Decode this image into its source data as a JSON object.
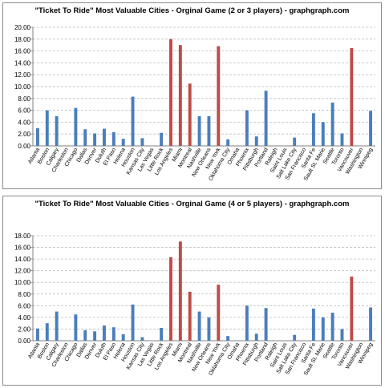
{
  "chart_data": [
    {
      "type": "bar",
      "title": "\"Ticket To Ride\" Most Valuable Cities - Orginal Game (2 or 3 players) - graphgraph.com",
      "xlabel": "",
      "ylabel": "",
      "ylim": [
        0,
        20
      ],
      "yticks": [
        "0.00",
        "2.00",
        "4.00",
        "6.00",
        "8.00",
        "10.00",
        "12.00",
        "14.00",
        "16.00",
        "18.00",
        "20.00"
      ],
      "grid": true,
      "colors": {
        "default": "#4a7ebb",
        "highlight": "#be4b48"
      },
      "highlighted": [
        "Los Angeles",
        "Miami",
        "Montreal",
        "New York",
        "Vancouver"
      ],
      "categories": [
        "Atlanta",
        "Boston",
        "Calgary",
        "Charleston",
        "Chicago",
        "Dallas",
        "Denver",
        "Duluth",
        "El Paso",
        "Helena",
        "Houston",
        "Kansas City",
        "Las Vegas",
        "Little Rock",
        "Los Angeles",
        "Miami",
        "Montreal",
        "Nashville",
        "New Orleans",
        "New York",
        "Oklahoma City",
        "Omaha",
        "Phoenix",
        "Pittsburgh",
        "Portland",
        "Raleigh",
        "Saint Louis",
        "Salt Lake City",
        "San Francisco",
        "Santa Fe",
        "Sault St. Marie",
        "Seattle",
        "Toronto",
        "Vancouver",
        "Washington",
        "Winnipeg"
      ],
      "values": [
        3.0,
        6.0,
        5.0,
        0,
        6.4,
        2.8,
        2.1,
        2.9,
        2.3,
        1.2,
        8.3,
        1.3,
        0,
        2.2,
        18.0,
        17.0,
        10.5,
        5.0,
        5.0,
        16.8,
        1.1,
        0,
        6.0,
        1.6,
        9.3,
        0,
        0,
        1.4,
        0,
        5.5,
        4.0,
        7.3,
        2.1,
        16.5,
        0,
        5.9
      ]
    },
    {
      "type": "bar",
      "title": "\"Ticket To Ride\" Most Valuable Cities - Orginal Game (4 or 5 players) - graphgraph.com",
      "xlabel": "",
      "ylabel": "",
      "ylim": [
        0,
        18
      ],
      "yticks": [
        "0.00",
        "2.00",
        "4.00",
        "6.00",
        "8.00",
        "10.00",
        "12.00",
        "14.00",
        "16.00",
        "18.00"
      ],
      "grid": true,
      "colors": {
        "default": "#4a7ebb",
        "highlight": "#be4b48"
      },
      "highlighted": [
        "Los Angeles",
        "Miami",
        "Montreal",
        "New York",
        "Vancouver"
      ],
      "categories": [
        "Atlanta",
        "Boston",
        "Calgary",
        "Charleston",
        "Chicago",
        "Dallas",
        "Denver",
        "Duluth",
        "El Paso",
        "Helena",
        "Houston",
        "Kansas City",
        "Las Vegas",
        "Little Rock",
        "Los Angeles",
        "Miami",
        "Montreal",
        "Nashville",
        "New Orleans",
        "New York",
        "Oklahoma City",
        "Omaha",
        "Phoenix",
        "Pittsburgh",
        "Portland",
        "Raleigh",
        "Saint Louis",
        "Salt Lake City",
        "San Francisco",
        "Santa Fe",
        "Sault St. Marie",
        "Seattle",
        "Toronto",
        "Vancouver",
        "Washington",
        "Winnipeg"
      ],
      "values": [
        2.1,
        3.0,
        5.0,
        0,
        4.5,
        1.8,
        1.6,
        2.6,
        2.3,
        1.1,
        6.2,
        0.6,
        0,
        2.2,
        14.3,
        17.0,
        8.4,
        5.0,
        4.0,
        9.6,
        0.8,
        0,
        6.0,
        1.2,
        5.6,
        0,
        0,
        1.0,
        0,
        5.5,
        4.0,
        4.8,
        2.0,
        11.0,
        0,
        5.7
      ]
    }
  ]
}
